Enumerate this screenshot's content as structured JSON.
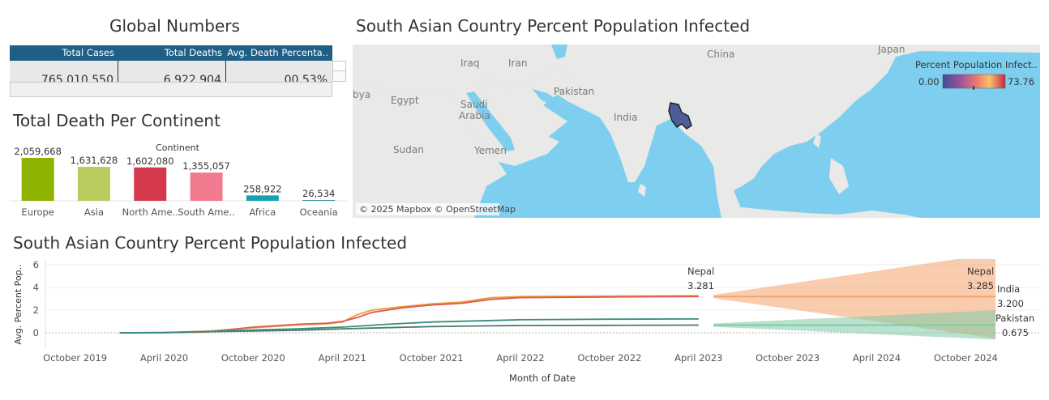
{
  "global_numbers": {
    "title": "Global Numbers",
    "headers": [
      "Total Cases",
      "Total Deaths",
      "Avg. Death Percenta.."
    ],
    "values": [
      "765,010,550",
      "6,922,904",
      "00.53%"
    ]
  },
  "map": {
    "title": "South Asian Country Percent Population Infected",
    "legend_title": "Percent Population Infect..",
    "legend_min": "0.00",
    "legend_max": "73.76",
    "attribution": "© 2025 Mapbox © OpenStreetMap",
    "labels": [
      "China",
      "Japan",
      "Iraq",
      "Iran",
      "Pakistan",
      "Egypt",
      "Saudi",
      "Arabia",
      "India",
      "Sudan",
      "Yemen",
      "bya"
    ],
    "colors": {
      "land": "#e9e9e7",
      "water": "#7ecfef",
      "highlight": "#4a5f9a"
    }
  },
  "chart_data": [
    {
      "type": "bar",
      "title": "Total Death Per Continent",
      "xlabel": "Continent",
      "categories": [
        "Europe",
        "Asia",
        "North Ame..",
        "South Ame..",
        "Africa",
        "Oceania"
      ],
      "values": [
        2059668,
        1631628,
        1602080,
        1355057,
        258922,
        26534
      ],
      "value_labels": [
        "2,059,668",
        "1,631,628",
        "1,602,080",
        "1,355,057",
        "258,922",
        "26,534"
      ],
      "colors": [
        "#8db200",
        "#b8cd5e",
        "#d4394e",
        "#f27a8f",
        "#14a2b3",
        "#3f8f9a"
      ],
      "ylim": [
        0,
        2059668
      ]
    },
    {
      "type": "line",
      "title": "South Asian Country Percent Population Infected",
      "xlabel": "Month of Date",
      "ylabel": "Avg. Percent Pop..",
      "ylim": [
        -1,
        6.5
      ],
      "yticks": [
        0,
        2,
        4,
        6
      ],
      "xlim": [
        "2019-08",
        "2024-12"
      ],
      "xticks": [
        "October 2019",
        "April 2020",
        "October 2020",
        "April 2021",
        "October 2021",
        "April 2022",
        "October 2022",
        "April 2023",
        "October 2023",
        "April 2024",
        "October 2024"
      ],
      "grid": true,
      "series": [
        {
          "name": "Nepal",
          "color": "#e8a13a",
          "x": [
            "2020-01",
            "2020-04",
            "2020-07",
            "2020-10",
            "2021-01",
            "2021-03",
            "2021-04",
            "2021-05",
            "2021-06",
            "2021-08",
            "2021-10",
            "2021-12",
            "2022-02",
            "2022-04",
            "2022-07",
            "2022-10",
            "2023-01",
            "2023-04"
          ],
          "values": [
            0,
            0.02,
            0.15,
            0.45,
            0.7,
            0.8,
            0.95,
            1.6,
            2.0,
            2.3,
            2.55,
            2.7,
            3.1,
            3.2,
            3.22,
            3.24,
            3.26,
            3.281
          ]
        },
        {
          "name": "India",
          "color": "#e05a4f",
          "x": [
            "2020-01",
            "2020-04",
            "2020-07",
            "2020-10",
            "2021-01",
            "2021-03",
            "2021-04",
            "2021-05",
            "2021-06",
            "2021-08",
            "2021-10",
            "2021-12",
            "2022-02",
            "2022-04",
            "2022-07",
            "2022-10",
            "2023-01",
            "2023-04"
          ],
          "values": [
            0,
            0.01,
            0.08,
            0.5,
            0.75,
            0.85,
            1.0,
            1.35,
            1.8,
            2.2,
            2.45,
            2.6,
            2.95,
            3.1,
            3.13,
            3.16,
            3.18,
            3.2
          ]
        },
        {
          "name": "Pakistan",
          "color": "#4a7d6c",
          "x": [
            "2020-01",
            "2020-04",
            "2020-07",
            "2020-10",
            "2021-01",
            "2021-04",
            "2021-07",
            "2021-10",
            "2022-01",
            "2022-04",
            "2022-10",
            "2023-04"
          ],
          "values": [
            0,
            0.01,
            0.1,
            0.15,
            0.22,
            0.35,
            0.45,
            0.55,
            0.6,
            0.64,
            0.66,
            0.675
          ]
        },
        {
          "name": "",
          "color": "#3a8c84",
          "x": [
            "2020-01",
            "2020-04",
            "2020-07",
            "2020-10",
            "2021-01",
            "2021-04",
            "2021-07",
            "2021-10",
            "2022-01",
            "2022-04",
            "2022-10",
            "2023-04"
          ],
          "values": [
            0,
            0.02,
            0.12,
            0.25,
            0.35,
            0.5,
            0.75,
            0.95,
            1.05,
            1.15,
            1.2,
            1.22
          ]
        }
      ],
      "forecast_start": "2023-05",
      "forecast_end": "2024-12",
      "forecasts": [
        {
          "series": "India",
          "color": "#f4a26b",
          "value": 3.2,
          "band_end": [
            -0.5,
            7.0
          ]
        },
        {
          "series": "Pakistan",
          "color": "#7fcba6",
          "value": 0.675,
          "band_end": [
            -0.6,
            2.0
          ]
        }
      ],
      "annotations": [
        {
          "label": "Nepal",
          "value_label": "3.281",
          "x": "2023-04"
        },
        {
          "label": "Nepal",
          "value_label": "3.285",
          "x": "2024-10"
        },
        {
          "label": "India",
          "value_label": "3.200",
          "x": "2024-12"
        },
        {
          "label": "Pakistan",
          "value_label": "0.675",
          "x": "2024-12"
        }
      ]
    }
  ]
}
